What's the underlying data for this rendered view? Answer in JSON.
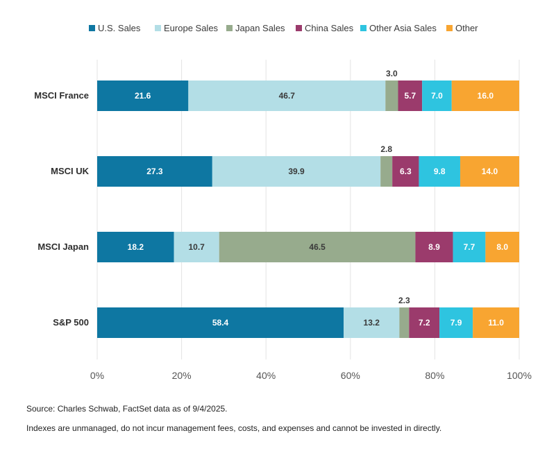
{
  "chart_data": {
    "type": "bar",
    "orientation": "horizontal",
    "stacked": true,
    "categories": [
      "MSCI France",
      "MSCI UK",
      "MSCI Japan",
      "S&P 500"
    ],
    "series": [
      {
        "name": "U.S. Sales",
        "color": "#0e77a2",
        "values": [
          21.6,
          27.3,
          18.2,
          58.4
        ]
      },
      {
        "name": "Europe Sales",
        "color": "#b3dee6",
        "values": [
          46.7,
          39.9,
          10.7,
          13.2
        ]
      },
      {
        "name": "Japan Sales",
        "color": "#97ab8d",
        "values": [
          3.0,
          2.8,
          46.5,
          2.3
        ]
      },
      {
        "name": "China Sales",
        "color": "#9b3b6c",
        "values": [
          5.7,
          6.3,
          8.9,
          7.2
        ]
      },
      {
        "name": "Other Asia Sales",
        "color": "#2ec4e0",
        "values": [
          7.0,
          9.8,
          7.7,
          7.9
        ]
      },
      {
        "name": "Other",
        "color": "#f8a531",
        "values": [
          16.0,
          14.0,
          8.0,
          11.0
        ]
      }
    ],
    "label_text": [
      [
        "21.6",
        "46.7",
        "3.0",
        "5.7",
        "7.0",
        "16.0"
      ],
      [
        "27.3",
        "39.9",
        "2.8",
        "6.3",
        "9.8",
        "14.0"
      ],
      [
        "18.2",
        "10.7",
        "46.5",
        "8.9",
        "7.7",
        "8.0"
      ],
      [
        "58.4",
        "13.2",
        "2.3",
        "7.2",
        "7.9",
        "11.0"
      ]
    ],
    "xlim": [
      0,
      100
    ],
    "x_ticks": [
      "0%",
      "20%",
      "40%",
      "60%",
      "80%",
      "100%"
    ],
    "x_tick_values": [
      0,
      20,
      40,
      60,
      80,
      100
    ],
    "grid": "vertical",
    "legend_position": "top"
  },
  "footnotes": {
    "source": "Source: Charles Schwab, FactSet data as of 9/4/2025.",
    "disclaimer": "Indexes are unmanaged, do not incur management fees, costs, and expenses and cannot be invested in directly."
  }
}
